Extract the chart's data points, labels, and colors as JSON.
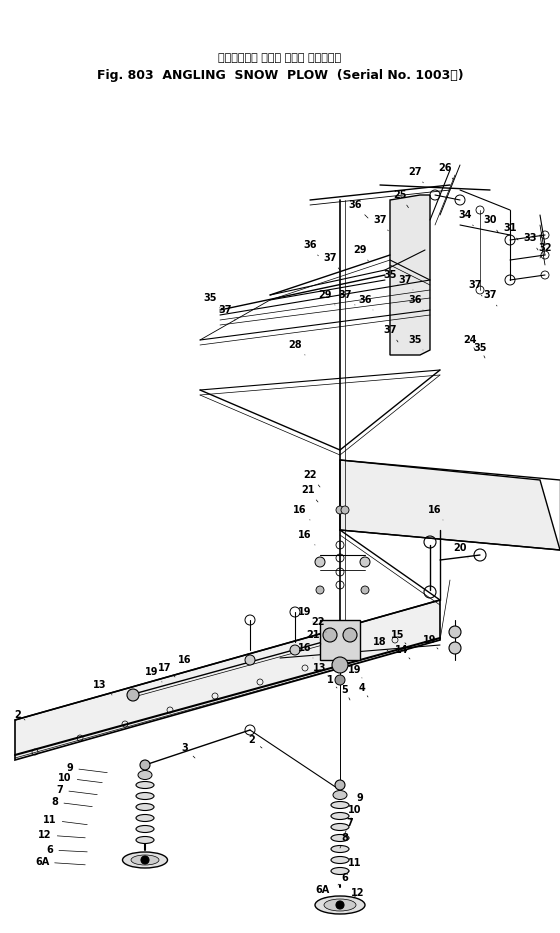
{
  "title_jp": "アングリング スノウ プラウ （適用号機",
  "title_en": "Fig. 803  ANGLING  SNOW  PLOW  (Serial No. 1003～)",
  "bg_color": "#ffffff",
  "lc": "#000000",
  "fig_width": 5.6,
  "fig_height": 9.33,
  "dpi": 100
}
